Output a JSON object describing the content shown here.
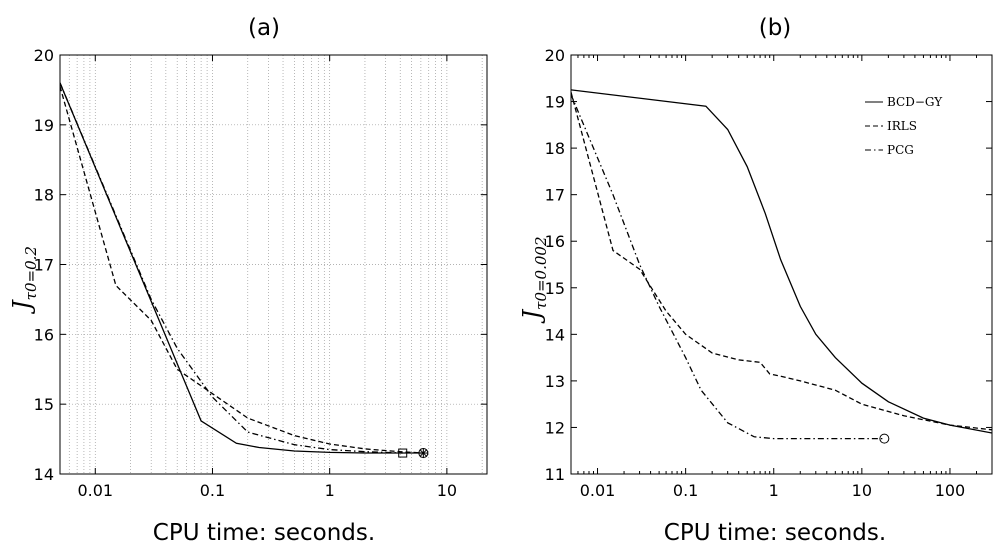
{
  "chart_data": [
    {
      "type": "line",
      "title": "(a)",
      "xlabel": "CPU time: seconds.",
      "ylabel_main": "J",
      "ylabel_sub": "τ0=0.2",
      "xscale": "log",
      "xlim": [
        0.005,
        22
      ],
      "ylim": [
        14,
        20
      ],
      "xticks": [
        0.01,
        0.1,
        1,
        10
      ],
      "xtick_labels": [
        "0.01",
        "0.1",
        "1",
        "10"
      ],
      "yticks": [
        14,
        15,
        16,
        17,
        18,
        19,
        20
      ],
      "ytick_labels": [
        "14",
        "15",
        "16",
        "17",
        "18",
        "19",
        "20"
      ],
      "grid": true,
      "series": [
        {
          "style": "solid",
          "x": [
            0.005,
            0.08,
            0.16,
            0.25,
            0.5,
            1,
            2,
            4,
            6.3
          ],
          "y": [
            19.6,
            14.76,
            14.44,
            14.38,
            14.33,
            14.31,
            14.3,
            14.3,
            14.3
          ],
          "end_marker": "star"
        },
        {
          "style": "dashed",
          "x": [
            0.005,
            0.015,
            0.03,
            0.05,
            0.1,
            0.2,
            0.5,
            1,
            2,
            4,
            6.3
          ],
          "y": [
            19.55,
            16.7,
            16.2,
            15.5,
            15.15,
            14.8,
            14.55,
            14.43,
            14.36,
            14.32,
            14.3
          ],
          "end_marker": "circle"
        },
        {
          "style": "dashdot",
          "x": [
            0.005,
            0.03,
            0.05,
            0.1,
            0.2,
            0.5,
            1,
            2,
            4.2
          ],
          "y": [
            19.6,
            16.5,
            15.8,
            15.1,
            14.6,
            14.42,
            14.35,
            14.32,
            14.3
          ],
          "end_marker": "square"
        }
      ]
    },
    {
      "type": "line",
      "title": "(b)",
      "xlabel": "CPU time: seconds.",
      "ylabel_main": "J",
      "ylabel_sub": "τ0=0.002",
      "xscale": "log",
      "xlim": [
        0.005,
        300
      ],
      "ylim": [
        11,
        20
      ],
      "xticks": [
        0.01,
        0.1,
        1,
        10,
        100
      ],
      "xtick_labels": [
        "0.01",
        "0.1",
        "1",
        "10",
        "100"
      ],
      "yticks": [
        11,
        12,
        13,
        14,
        15,
        16,
        17,
        18,
        19,
        20
      ],
      "ytick_labels": [
        "11",
        "12",
        "13",
        "14",
        "15",
        "16",
        "17",
        "18",
        "19",
        "20"
      ],
      "grid": false,
      "legend": {
        "position": "top-right",
        "entries": [
          {
            "label": "BCD−GY",
            "style": "solid"
          },
          {
            "label": "IRLS",
            "style": "dashed"
          },
          {
            "label": "PCG",
            "style": "dashdot"
          }
        ]
      },
      "series": [
        {
          "name": "BCD−GY",
          "style": "solid",
          "x": [
            0.005,
            0.17,
            0.3,
            0.5,
            0.8,
            1.2,
            2,
            3,
            5,
            10,
            20,
            50,
            100,
            300
          ],
          "y": [
            19.25,
            18.9,
            18.4,
            17.6,
            16.6,
            15.6,
            14.6,
            14.0,
            13.5,
            12.95,
            12.55,
            12.2,
            12.05,
            11.88
          ],
          "end_marker": "none"
        },
        {
          "name": "IRLS",
          "style": "dashed",
          "x": [
            0.005,
            0.015,
            0.03,
            0.06,
            0.1,
            0.2,
            0.4,
            0.7,
            0.9,
            1.2,
            2,
            5,
            10,
            30,
            100,
            300
          ],
          "y": [
            19.2,
            15.8,
            15.4,
            14.5,
            14.0,
            13.6,
            13.45,
            13.4,
            13.15,
            13.1,
            13.0,
            12.8,
            12.5,
            12.25,
            12.05,
            11.95
          ],
          "end_marker": "none"
        },
        {
          "name": "PCG",
          "style": "dashdot",
          "x": [
            0.005,
            0.015,
            0.03,
            0.05,
            0.1,
            0.15,
            0.3,
            0.6,
            1,
            2,
            5,
            10,
            18
          ],
          "y": [
            19.15,
            17.0,
            15.5,
            14.6,
            13.5,
            12.8,
            12.1,
            11.8,
            11.76,
            11.76,
            11.76,
            11.76,
            11.76
          ],
          "end_marker": "circle"
        }
      ]
    }
  ]
}
